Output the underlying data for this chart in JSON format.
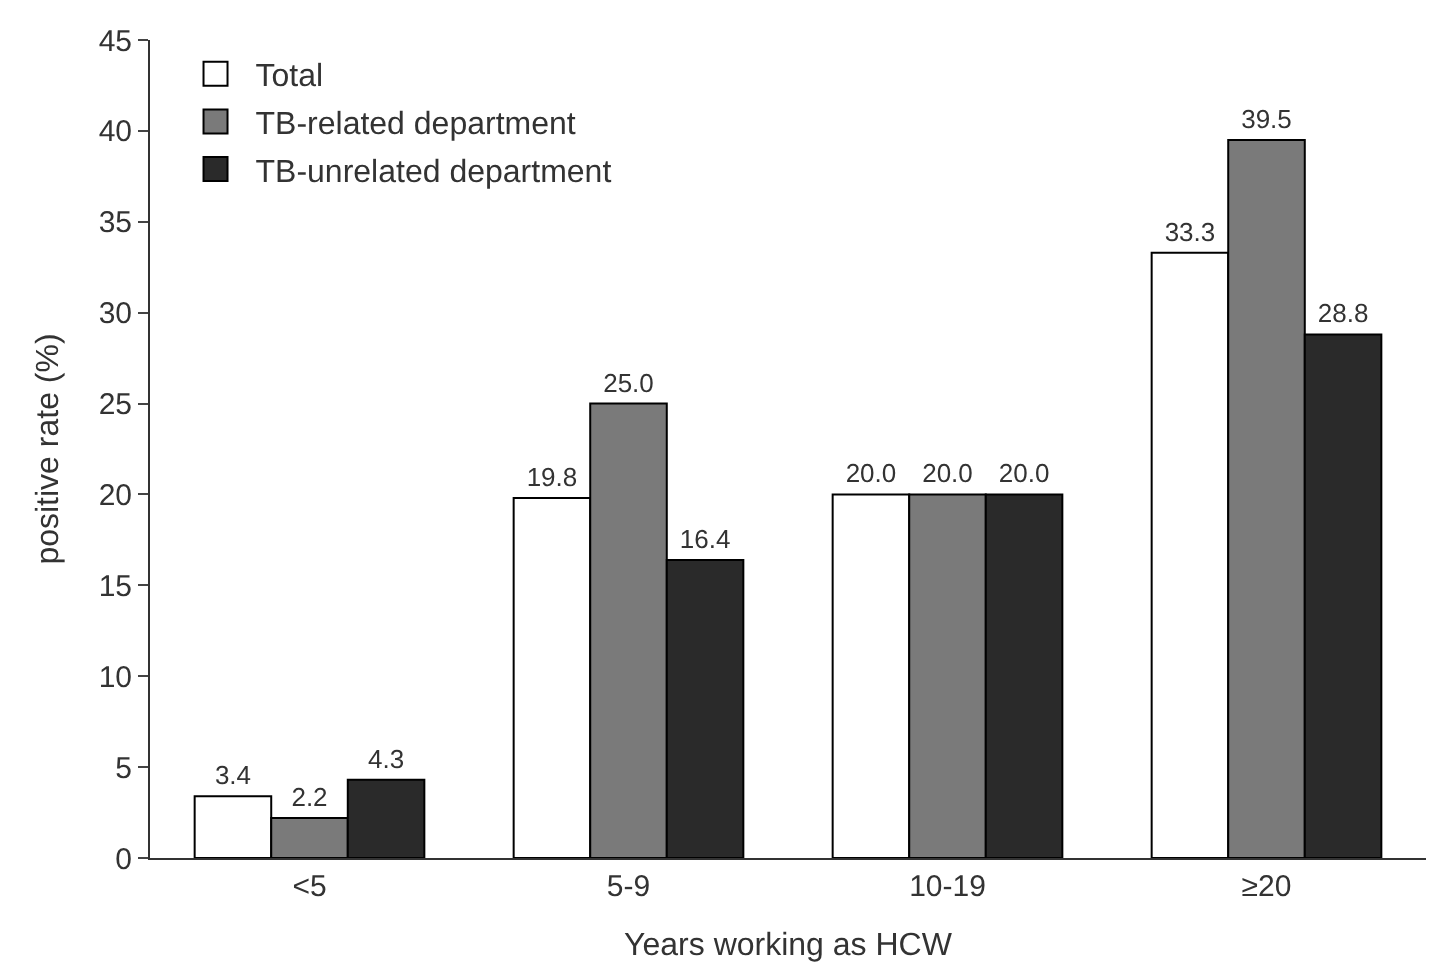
{
  "chart_data": {
    "type": "bar",
    "xlabel": "Years working as HCW",
    "ylabel": "positive rate (%)",
    "categories": [
      "<5",
      "5-9",
      "10-19",
      "≥20"
    ],
    "series": [
      {
        "name": "Total",
        "color": "#ffffff",
        "values": [
          3.4,
          19.8,
          20.0,
          33.3
        ],
        "value_labels": [
          "3.4",
          "19.8",
          "20.0",
          "33.3"
        ]
      },
      {
        "name": "TB-related department",
        "color": "#7a7a7a",
        "values": [
          2.2,
          25.0,
          20.0,
          39.5
        ],
        "value_labels": [
          "2.2",
          "25.0",
          "20.0",
          "39.5"
        ]
      },
      {
        "name": "TB-unrelated department",
        "color": "#2a2a2a",
        "values": [
          4.3,
          16.4,
          20.0,
          28.8
        ],
        "value_labels": [
          "4.3",
          "16.4",
          "20.0",
          "28.8"
        ]
      }
    ],
    "ylim": [
      0,
      45
    ],
    "yticks": [
      0,
      5,
      10,
      15,
      20,
      25,
      30,
      35,
      40,
      45
    ],
    "legend": "top left"
  }
}
